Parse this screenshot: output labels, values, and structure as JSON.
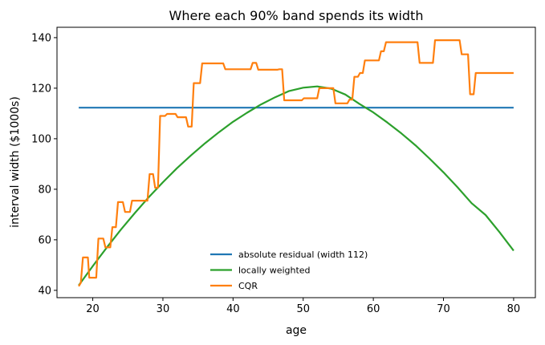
{
  "chart_data": {
    "type": "line",
    "title": "Where each 90% band spends its width",
    "xlabel": "age",
    "ylabel": "interval width ($1000s)",
    "xlim": [
      14.9,
      83.1
    ],
    "ylim": [
      37.1,
      144.1
    ],
    "xticks": [
      20,
      30,
      40,
      50,
      60,
      70,
      80
    ],
    "yticks": [
      40,
      60,
      80,
      100,
      120,
      140
    ],
    "grid": false,
    "legend_position": "lower-center",
    "series": [
      {
        "name": "absolute residual (width 112)",
        "color": "#1f77b4",
        "x": [
          18,
          80
        ],
        "y": [
          112.3,
          112.3
        ]
      },
      {
        "name": "locally weighted",
        "color": "#2ca02c",
        "x": [
          18,
          20,
          22,
          24,
          26,
          28,
          30,
          32,
          34,
          36,
          38,
          40,
          42,
          44,
          46,
          48,
          50,
          52,
          54,
          56,
          58,
          60,
          62,
          64,
          66,
          68,
          70,
          72,
          74,
          76,
          78,
          80
        ],
        "y": [
          42.0,
          49.6,
          56.9,
          64.0,
          70.6,
          76.9,
          82.8,
          88.3,
          93.4,
          98.2,
          102.6,
          106.7,
          110.3,
          113.6,
          116.4,
          118.9,
          120.2,
          120.7,
          119.8,
          117.5,
          113.8,
          110.4,
          106.4,
          102.1,
          97.4,
          92.2,
          86.7,
          80.8,
          74.5,
          69.8,
          63.0,
          55.7
        ]
      },
      {
        "name": "CQR",
        "color": "#ff7f0e",
        "x": [
          18.0,
          18.3,
          18.6,
          19.3,
          19.5,
          20.5,
          20.8,
          21.5,
          21.8,
          22.5,
          22.8,
          23.3,
          23.6,
          24.3,
          24.6,
          25.3,
          25.6,
          26.3,
          26.6,
          27.8,
          28.1,
          28.6,
          28.9,
          29.3,
          29.6,
          30.3,
          30.6,
          31.8,
          32.1,
          33.3,
          33.6,
          34.1,
          34.4,
          35.3,
          35.6,
          38.6,
          38.9,
          41.8,
          42.1,
          42.5,
          42.8,
          43.3,
          43.6,
          46.3,
          46.6,
          47.0,
          47.3,
          49.8,
          50.1,
          51.3,
          51.6,
          52.0,
          52.3,
          54.3,
          54.6,
          56.3,
          56.6,
          57.0,
          57.3,
          57.8,
          58.1,
          58.5,
          58.8,
          60.8,
          61.1,
          61.5,
          61.8,
          66.3,
          66.6,
          68.5,
          68.8,
          72.3,
          72.6,
          73.5,
          73.8,
          74.3,
          74.6,
          80.0
        ],
        "y": [
          41.6,
          43.0,
          53.0,
          53.0,
          45.0,
          45.0,
          60.5,
          60.5,
          57.0,
          57.0,
          65.0,
          65.0,
          74.9,
          74.9,
          71.0,
          71.0,
          75.5,
          75.5,
          75.5,
          75.5,
          86.0,
          86.0,
          80.6,
          80.6,
          109.0,
          109.0,
          109.8,
          109.8,
          108.5,
          108.5,
          104.8,
          104.8,
          122.0,
          122.0,
          129.8,
          129.8,
          127.5,
          127.5,
          127.5,
          127.5,
          130.0,
          130.0,
          127.3,
          127.3,
          127.5,
          127.5,
          115.2,
          115.2,
          116.0,
          116.0,
          116.0,
          116.0,
          120.0,
          120.0,
          114.0,
          114.0,
          115.5,
          115.5,
          124.5,
          124.5,
          126.0,
          126.0,
          131.0,
          131.0,
          134.6,
          134.6,
          138.2,
          138.2,
          130.0,
          130.0,
          139.0,
          139.0,
          133.4,
          133.4,
          117.6,
          117.6,
          126.0,
          126.0
        ]
      }
    ]
  }
}
